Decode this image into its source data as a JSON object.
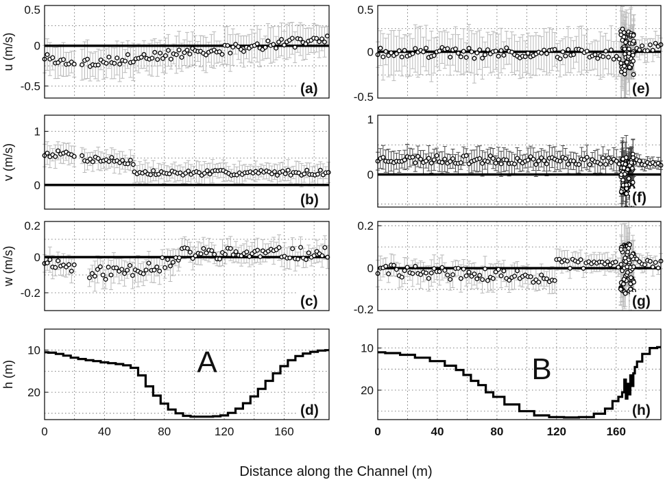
{
  "figure": {
    "xlabel": "Distance along the Channel (m)"
  },
  "chart_data": [
    {
      "id": "a",
      "type": "scatter",
      "tag": "(a)",
      "ylabel": "u (m/s)",
      "xlim": [
        0,
        190
      ],
      "ylim": [
        -0.65,
        0.5
      ],
      "yticks": [
        {
          "v": 0.5,
          "label": "0.5"
        },
        {
          "v": 0,
          "label": "0"
        },
        {
          "v": -0.5,
          "label": "-0.5"
        }
      ],
      "ygrid": [
        -0.5,
        -0.25,
        0,
        0.25,
        0.5
      ],
      "xgrid": [
        20,
        40,
        60,
        80,
        100,
        120,
        140,
        160,
        180
      ],
      "zero_line": true,
      "err_color": "#b8b8b8",
      "segments": [
        {
          "x0": 0,
          "x1": 20,
          "base": -0.14,
          "slope": -0.004,
          "amp": 0.05,
          "err": 0.2
        },
        {
          "x0": 25,
          "x1": 190,
          "base": -0.22,
          "slope": 0.0018,
          "amp": 0.06,
          "err": 0.22
        }
      ],
      "step": 1.8,
      "seed": 3
    },
    {
      "id": "b",
      "type": "scatter",
      "tag": "(b)",
      "ylabel": "v (m/s)",
      "xlim": [
        0,
        190
      ],
      "ylim": [
        -0.45,
        1.3
      ],
      "yticks": [
        {
          "v": 1,
          "label": "1"
        },
        {
          "v": 0,
          "label": "0"
        }
      ],
      "ygrid": [
        -0.5,
        0,
        0.5,
        1
      ],
      "xgrid": [
        20,
        40,
        60,
        80,
        100,
        120,
        140,
        160,
        180
      ],
      "zero_line": true,
      "err_color": "#b8b8b8",
      "segments": [
        {
          "x0": 0,
          "x1": 20,
          "base": 0.58,
          "slope": 0.0,
          "amp": 0.06,
          "err": 0.2
        },
        {
          "x0": 25,
          "x1": 60,
          "base": 0.5,
          "slope": -0.002,
          "amp": 0.07,
          "err": 0.2
        },
        {
          "x0": 60,
          "x1": 190,
          "base": 0.22,
          "slope": 0.0001,
          "amp": 0.05,
          "err": 0.2
        }
      ],
      "step": 1.8,
      "seed": 7
    },
    {
      "id": "c",
      "type": "scatter",
      "tag": "(c)",
      "ylabel": "w (m/s)",
      "xlim": [
        0,
        190
      ],
      "ylim": [
        -0.3,
        0.2
      ],
      "yticks": [
        {
          "v": 0.2,
          "label": "0.2"
        },
        {
          "v": 0,
          "label": "0"
        },
        {
          "v": -0.2,
          "label": "-0.2"
        }
      ],
      "ygrid": [
        -0.2,
        -0.1,
        0,
        0.1,
        0.2
      ],
      "xgrid": [
        20,
        40,
        60,
        80,
        100,
        120,
        140,
        160,
        180
      ],
      "zero_line": true,
      "err_color": "#b8b8b8",
      "segments": [
        {
          "x0": 0,
          "x1": 20,
          "base": -0.02,
          "slope": -0.002,
          "amp": 0.03,
          "err": 0.07
        },
        {
          "x0": 30,
          "x1": 90,
          "base": -0.1,
          "slope": 0.0012,
          "amp": 0.04,
          "err": 0.08
        },
        {
          "x0": 90,
          "x1": 190,
          "base": 0.02,
          "slope": 0.0,
          "amp": 0.035,
          "err": 0.07
        }
      ],
      "step": 1.8,
      "seed": 11
    },
    {
      "id": "d",
      "type": "line",
      "tag": "(d)",
      "ylabel": "h (m)",
      "annotation": "A",
      "xlim": [
        0,
        190
      ],
      "ylim": [
        26.5,
        5
      ],
      "y_inverted": true,
      "yticks": [
        {
          "v": 10,
          "label": "10"
        },
        {
          "v": 20,
          "label": "20"
        }
      ],
      "xticks": [
        {
          "v": 0,
          "label": "0"
        },
        {
          "v": 40,
          "label": "40"
        },
        {
          "v": 80,
          "label": "80"
        },
        {
          "v": 120,
          "label": "120"
        },
        {
          "v": 160,
          "label": "160"
        }
      ],
      "xtick_bold": false,
      "ygrid": [
        10,
        15,
        20,
        25
      ],
      "xgrid": [
        20,
        40,
        60,
        80,
        100,
        120,
        140,
        160,
        180
      ],
      "x": [
        0,
        5,
        10,
        15,
        20,
        25,
        30,
        35,
        40,
        45,
        50,
        55,
        60,
        65,
        70,
        75,
        80,
        85,
        90,
        95,
        100,
        105,
        110,
        115,
        120,
        125,
        130,
        135,
        140,
        145,
        150,
        155,
        160,
        165,
        170,
        175,
        180,
        185,
        190
      ],
      "y": [
        10.5,
        10.6,
        10.9,
        11.3,
        11.8,
        12.1,
        12.4,
        12.6,
        12.9,
        13.1,
        13.3,
        13.6,
        14.2,
        16.0,
        18.6,
        20.8,
        22.7,
        24.1,
        25.0,
        25.6,
        25.8,
        25.8,
        25.8,
        25.7,
        25.5,
        24.9,
        23.9,
        22.6,
        21.0,
        19.2,
        17.3,
        15.5,
        13.8,
        12.4,
        11.4,
        10.8,
        10.4,
        10.1,
        10.0
      ]
    },
    {
      "id": "e",
      "type": "scatter",
      "tag": "(e)",
      "ylabel": "",
      "xlim": [
        0,
        190
      ],
      "ylim": [
        -0.5,
        0.5
      ],
      "yticks": [
        {
          "v": 0.5,
          "label": "0.5"
        },
        {
          "v": 0,
          "label": "0"
        },
        {
          "v": -0.5,
          "label": "-0.5"
        }
      ],
      "ygrid": [
        -0.5,
        -0.25,
        0,
        0.25,
        0.5
      ],
      "xgrid": [
        20,
        40,
        60,
        80,
        100,
        120,
        140,
        160,
        180
      ],
      "zero_line": true,
      "err_color": "#b8b8b8",
      "segments": [
        {
          "x0": 0,
          "x1": 163,
          "base": 0.0,
          "slope": -0.0002,
          "amp": 0.06,
          "err": 0.25
        },
        {
          "x0": 172,
          "x1": 190,
          "base": 0.05,
          "slope": 0.0,
          "amp": 0.05,
          "err": 0.12
        }
      ],
      "dense": {
        "x0": 163,
        "x1": 172,
        "n": 60,
        "amp": 0.25,
        "err": 0.35
      },
      "step": 1.8,
      "seed": 19
    },
    {
      "id": "f",
      "type": "scatter",
      "tag": "(f)",
      "ylabel": "",
      "xlim": [
        0,
        190
      ],
      "ylim": [
        -0.55,
        1.0
      ],
      "yticks": [
        {
          "v": 1,
          "label": "1"
        },
        {
          "v": 0,
          "label": "0"
        }
      ],
      "ygrid": [
        -0.5,
        0,
        0.5,
        1
      ],
      "xgrid": [
        20,
        40,
        60,
        80,
        100,
        120,
        140,
        160,
        180
      ],
      "zero_line": true,
      "err_color": "#444444",
      "segments": [
        {
          "x0": 0,
          "x1": 163,
          "base": 0.26,
          "slope": -0.0002,
          "amp": 0.07,
          "err": 0.2
        },
        {
          "x0": 172,
          "x1": 190,
          "base": 0.2,
          "slope": 0.0,
          "amp": 0.05,
          "err": 0.1
        }
      ],
      "dense": {
        "x0": 163,
        "x1": 172,
        "n": 60,
        "amp": 0.35,
        "err": 0.35
      },
      "step": 1.8,
      "seed": 23
    },
    {
      "id": "g",
      "type": "scatter",
      "tag": "(g)",
      "ylabel": "",
      "xlim": [
        0,
        190
      ],
      "ylim": [
        -0.2,
        0.22
      ],
      "yticks": [
        {
          "v": 0.2,
          "label": "0.2"
        },
        {
          "v": 0,
          "label": "0"
        },
        {
          "v": -0.2,
          "label": "-0.2"
        }
      ],
      "ygrid": [
        -0.2,
        -0.1,
        0,
        0.1,
        0.2
      ],
      "xgrid": [
        20,
        40,
        60,
        80,
        100,
        120,
        140,
        160,
        180
      ],
      "zero_line": true,
      "err_color": "#b8b8b8",
      "segments": [
        {
          "x0": 0,
          "x1": 120,
          "base": -0.01,
          "slope": -0.0003,
          "amp": 0.03,
          "err": 0.06
        },
        {
          "x0": 120,
          "x1": 163,
          "base": 0.02,
          "slope": 0.0,
          "amp": 0.025,
          "err": 0.05
        },
        {
          "x0": 172,
          "x1": 190,
          "base": 0.05,
          "slope": -0.002,
          "amp": 0.02,
          "err": 0.04
        }
      ],
      "dense": {
        "x0": 163,
        "x1": 172,
        "n": 60,
        "amp": 0.12,
        "err": 0.1
      },
      "step": 1.8,
      "seed": 29
    },
    {
      "id": "h",
      "type": "line",
      "tag": "(h)",
      "ylabel": "",
      "annotation": "B",
      "xlim": [
        0,
        190
      ],
      "ylim": [
        27,
        5.5
      ],
      "y_inverted": true,
      "yticks": [
        {
          "v": 10,
          "label": "10"
        },
        {
          "v": 20,
          "label": "20"
        }
      ],
      "xticks": [
        {
          "v": 0,
          "label": "0"
        },
        {
          "v": 40,
          "label": "40"
        },
        {
          "v": 80,
          "label": "80"
        },
        {
          "v": 120,
          "label": "120"
        },
        {
          "v": 160,
          "label": "160"
        }
      ],
      "xtick_bold": true,
      "ygrid": [
        10,
        15,
        20,
        25
      ],
      "xgrid": [
        20,
        40,
        60,
        80,
        100,
        120,
        140,
        160,
        180
      ],
      "x": [
        0,
        10,
        20,
        30,
        40,
        50,
        55,
        60,
        65,
        70,
        75,
        80,
        90,
        100,
        110,
        120,
        130,
        140,
        150,
        155,
        160,
        163,
        165,
        166,
        167,
        168,
        169,
        170,
        171,
        172,
        173,
        175,
        180,
        185,
        190
      ],
      "y": [
        11.0,
        11.2,
        11.6,
        12.3,
        13.1,
        14.2,
        15.2,
        16.4,
        17.8,
        18.8,
        20.5,
        21.6,
        23.4,
        25.0,
        26.0,
        26.4,
        26.5,
        26.4,
        25.6,
        24.4,
        22.6,
        21.6,
        20.5,
        17.5,
        22.0,
        18.5,
        21.0,
        16.5,
        19.0,
        16.0,
        14.5,
        13.2,
        11.4,
        10.0,
        9.8
      ]
    }
  ]
}
